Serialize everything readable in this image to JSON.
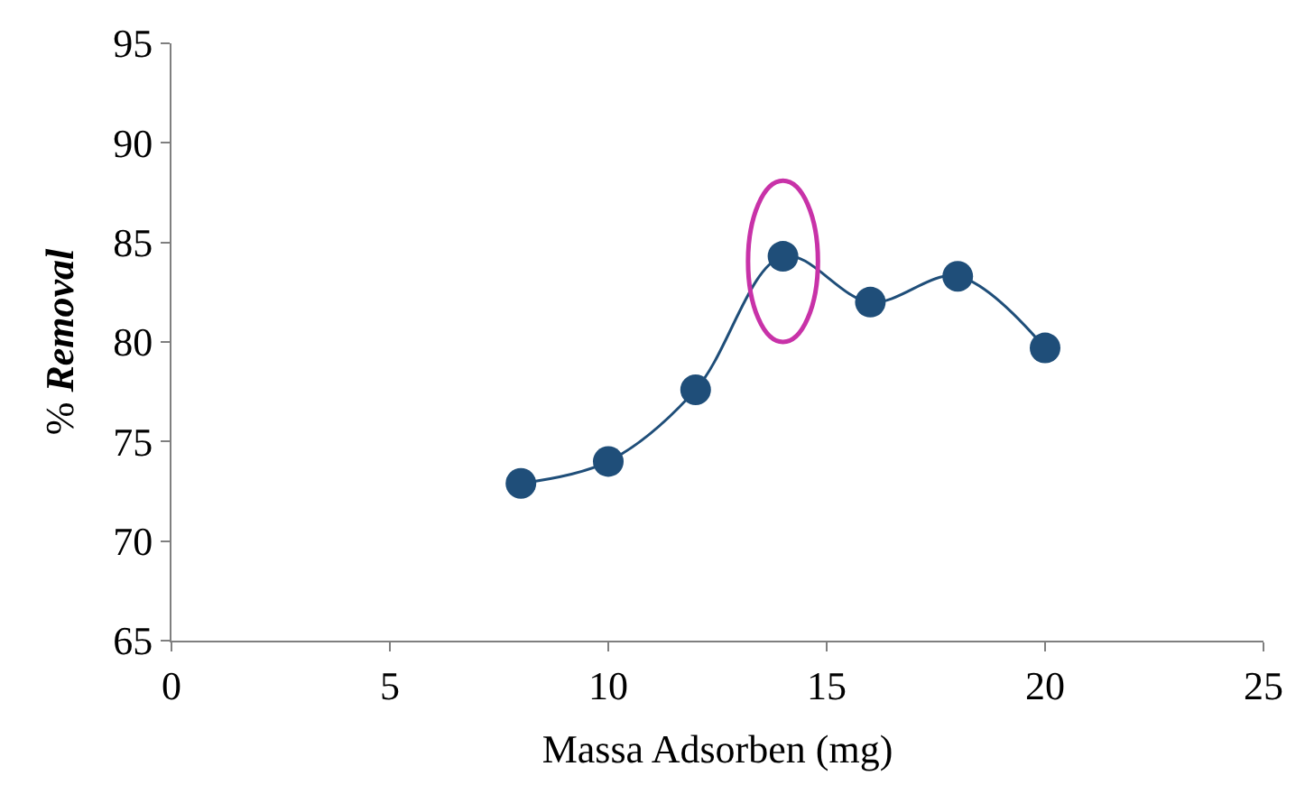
{
  "chart_data": {
    "type": "line",
    "xlabel": "Massa Adsorben (mg)",
    "ylabel": "% Removal",
    "x": [
      8,
      10,
      12,
      14,
      16,
      18,
      20
    ],
    "series": [
      {
        "color": "#1f4e79",
        "values": [
          72.9,
          74.0,
          77.6,
          84.3,
          82.0,
          83.3,
          79.7
        ]
      }
    ],
    "xlim": [
      0,
      25
    ],
    "xticks": [
      0,
      5,
      10,
      15,
      20,
      25
    ],
    "ylim": [
      65,
      95
    ],
    "yticks": [
      65,
      70,
      75,
      80,
      85,
      90,
      95
    ],
    "marker": "circle",
    "line_style": "solid"
  }
}
